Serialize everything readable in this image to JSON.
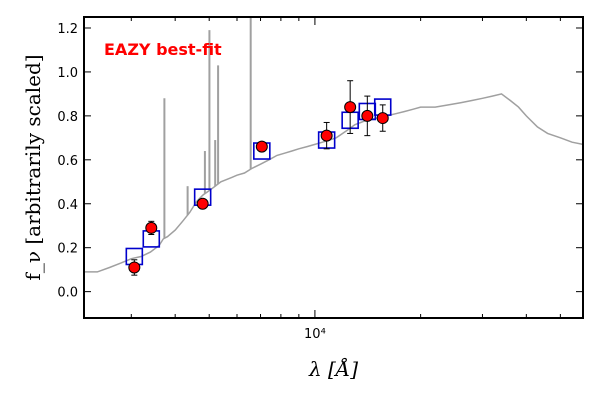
{
  "chart_data": {
    "type": "scatter",
    "title": "",
    "xlabel": "λ [Å]",
    "ylabel": "f_ν [arbitrarily scaled]",
    "xscale": "log",
    "xlim": [
      2200,
      58000
    ],
    "ylim": [
      -0.12,
      1.25
    ],
    "xticks": [
      {
        "value": 10000,
        "label": "10⁴"
      }
    ],
    "yticks": [
      0.0,
      0.2,
      0.4,
      0.6,
      0.8,
      1.0,
      1.2
    ],
    "grid": false,
    "annotation": {
      "text": "EAZY best-fit",
      "color": "#ff0000"
    },
    "colors": {
      "spectrum": "#a0a0a0",
      "model": "#0000cc",
      "observed_fill": "#ff0000",
      "observed_edge": "#000000"
    },
    "series": [
      {
        "kind": "line",
        "x": [
          2200,
          2400,
          2600,
          2800,
          3000,
          3200,
          3400,
          3600,
          3700,
          3800,
          4000,
          4200,
          4400,
          4600,
          4800,
          5000,
          5200,
          5400,
          5600,
          5800,
          6000,
          6300,
          6600,
          7000,
          7400,
          7800,
          8200,
          8600,
          9000,
          9500,
          10000,
          10500,
          11000,
          11500,
          12000,
          12500,
          13000,
          13500,
          14000,
          15000,
          16000,
          17000,
          18000,
          19000,
          20000,
          22000,
          24000,
          26000,
          28000,
          30000,
          32000,
          34000,
          36000,
          38000,
          40000,
          43000,
          46000,
          50000,
          54000,
          58000
        ],
        "y": [
          0.09,
          0.09,
          0.11,
          0.13,
          0.15,
          0.16,
          0.18,
          0.21,
          0.24,
          0.25,
          0.28,
          0.32,
          0.36,
          0.41,
          0.44,
          0.46,
          0.48,
          0.5,
          0.51,
          0.52,
          0.53,
          0.54,
          0.56,
          0.58,
          0.6,
          0.62,
          0.63,
          0.64,
          0.65,
          0.66,
          0.67,
          0.68,
          0.69,
          0.7,
          0.72,
          0.74,
          0.76,
          0.77,
          0.78,
          0.79,
          0.8,
          0.81,
          0.82,
          0.83,
          0.84,
          0.84,
          0.85,
          0.86,
          0.87,
          0.88,
          0.89,
          0.9,
          0.87,
          0.84,
          0.8,
          0.75,
          0.72,
          0.7,
          0.68,
          0.67
        ]
      },
      {
        "kind": "emission_lines",
        "lines": [
          {
            "x": 3727,
            "y": 0.88
          },
          {
            "x": 4340,
            "y": 0.48
          },
          {
            "x": 4861,
            "y": 0.64
          },
          {
            "x": 5007,
            "y": 1.19
          },
          {
            "x": 5200,
            "y": 0.69
          },
          {
            "x": 5300,
            "y": 1.03
          },
          {
            "x": 6563,
            "y": 1.27
          }
        ]
      },
      {
        "kind": "model_photometry",
        "x": [
          3060,
          3420,
          4790,
          7060,
          10800,
          12600,
          14100,
          15600
        ],
        "y": [
          0.16,
          0.24,
          0.43,
          0.64,
          0.69,
          0.78,
          0.82,
          0.84
        ]
      },
      {
        "kind": "observed_photometry",
        "x": [
          3060,
          3420,
          4790,
          7060,
          10800,
          12600,
          14100,
          15600
        ],
        "y": [
          0.11,
          0.29,
          0.4,
          0.66,
          0.71,
          0.84,
          0.8,
          0.79
        ],
        "yerr": [
          0.035,
          0.03,
          0.02,
          0.02,
          0.06,
          0.12,
          0.09,
          0.06
        ]
      }
    ]
  }
}
